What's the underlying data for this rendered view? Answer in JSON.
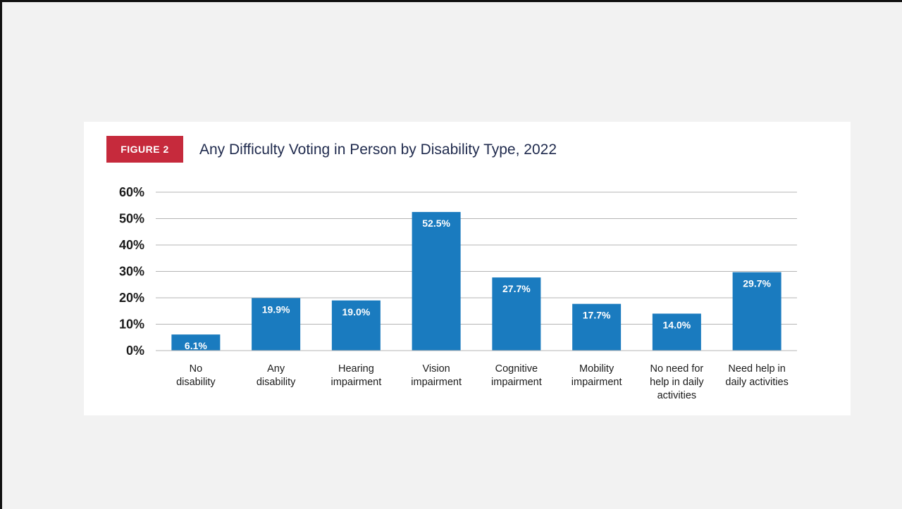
{
  "figure": {
    "badge": "FIGURE 2",
    "title": "Any Difficulty Voting in Person by Disability Type, 2022"
  },
  "colors": {
    "bar": "#1a7bbf",
    "badge": "#c62a3c",
    "title": "#1f2a4d",
    "grid": "#b5b5b5"
  },
  "chart_data": {
    "type": "bar",
    "title": "Any Difficulty Voting in Person by Disability Type, 2022",
    "categories": [
      [
        "No",
        "disability"
      ],
      [
        "Any",
        "disability"
      ],
      [
        "Hearing",
        "impairment"
      ],
      [
        "Vision",
        "impairment"
      ],
      [
        "Cognitive",
        "impairment"
      ],
      [
        "Mobility",
        "impairment"
      ],
      [
        "No need for",
        "help in daily",
        "activities"
      ],
      [
        "Need help in",
        "daily activities"
      ]
    ],
    "values": [
      6.1,
      19.9,
      19.0,
      52.5,
      27.7,
      17.7,
      14.0,
      29.7
    ],
    "value_labels": [
      "6.1%",
      "19.9%",
      "19.0%",
      "52.5%",
      "27.7%",
      "17.7%",
      "14.0%",
      "29.7%"
    ],
    "yticks": [
      "0%",
      "10%",
      "20%",
      "30%",
      "40%",
      "50%",
      "60%"
    ],
    "ylim": [
      0,
      60
    ],
    "grid": true,
    "legend": "none"
  }
}
